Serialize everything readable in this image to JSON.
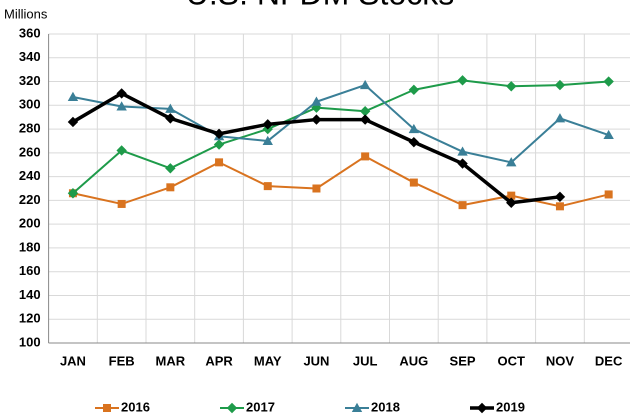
{
  "chart_data": {
    "type": "line",
    "title": "U.S. NFDM Stocks",
    "y_label": "Millions",
    "categories": [
      "JAN",
      "FEB",
      "MAR",
      "APR",
      "MAY",
      "JUN",
      "JUL",
      "AUG",
      "SEP",
      "OCT",
      "NOV",
      "DEC"
    ],
    "ylim": [
      100,
      360
    ],
    "yticks": [
      100,
      120,
      140,
      160,
      180,
      200,
      220,
      240,
      260,
      280,
      300,
      320,
      340,
      360
    ],
    "grid": true,
    "series": [
      {
        "name": "2016",
        "color": "#d9731f",
        "marker": "square",
        "values": [
          226,
          217,
          231,
          252,
          232,
          230,
          257,
          235,
          216,
          224,
          215,
          225
        ]
      },
      {
        "name": "2017",
        "color": "#1e9b4a",
        "marker": "diamond",
        "values": [
          226,
          262,
          247,
          267,
          280,
          298,
          295,
          313,
          321,
          316,
          317,
          320
        ]
      },
      {
        "name": "2018",
        "color": "#3a7f97",
        "marker": "triangle",
        "values": [
          307,
          299,
          297,
          274,
          270,
          303,
          317,
          280,
          261,
          252,
          289,
          275
        ]
      },
      {
        "name": "2019",
        "color": "#000000",
        "marker": "diamond",
        "values": [
          286,
          310,
          289,
          276,
          284,
          288,
          288,
          269,
          251,
          218,
          223,
          null
        ]
      }
    ]
  }
}
